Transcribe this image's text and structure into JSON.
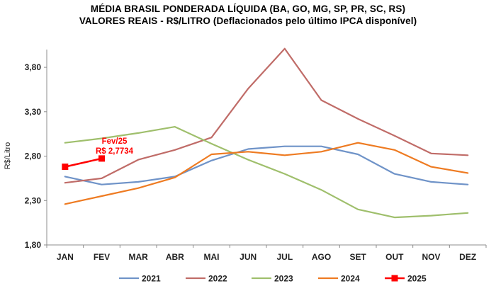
{
  "chart_data": {
    "type": "line",
    "title": "MÉDIA BRASIL PONDERADA LÍQUIDA (BA, GO, MG, SP, PR, SC, RS)",
    "subtitle": "VALORES REAIS - R$/LITRO (Deflacionados pelo último IPCA disponível)",
    "xlabel": "",
    "ylabel": "R$/Litro",
    "categories": [
      "JAN",
      "FEV",
      "MAR",
      "ABR",
      "MAI",
      "JUN",
      "JUL",
      "AGO",
      "SET",
      "OUT",
      "NOV",
      "DEZ"
    ],
    "ylim": [
      1.8,
      4.0
    ],
    "yticks": [
      "1,80",
      "2,30",
      "2,80",
      "3,30",
      "3,80"
    ],
    "ytick_values": [
      1.8,
      2.3,
      2.8,
      3.3,
      3.8
    ],
    "grid": false,
    "legend_position": "bottom",
    "series": [
      {
        "name": "2021",
        "color": "#6f93c8",
        "marker": false,
        "values": [
          2.57,
          2.48,
          2.51,
          2.57,
          2.75,
          2.88,
          2.91,
          2.91,
          2.82,
          2.6,
          2.51,
          2.48
        ]
      },
      {
        "name": "2022",
        "color": "#c06c68",
        "marker": false,
        "values": [
          2.5,
          2.55,
          2.76,
          2.87,
          3.01,
          3.56,
          4.01,
          3.43,
          3.22,
          3.03,
          2.83,
          2.81
        ]
      },
      {
        "name": "2023",
        "color": "#9fbf6c",
        "marker": false,
        "values": [
          2.95,
          3.0,
          3.06,
          3.13,
          2.94,
          2.76,
          2.6,
          2.42,
          2.2,
          2.11,
          2.13,
          2.16
        ]
      },
      {
        "name": "2024",
        "color": "#ee7b22",
        "marker": false,
        "values": [
          2.26,
          2.35,
          2.44,
          2.56,
          2.82,
          2.85,
          2.81,
          2.85,
          2.95,
          2.87,
          2.68,
          2.61
        ]
      },
      {
        "name": "2025",
        "color": "#ff0000",
        "marker": true,
        "values": [
          2.68,
          2.7734,
          null,
          null,
          null,
          null,
          null,
          null,
          null,
          null,
          null,
          null
        ]
      }
    ],
    "annotations": [
      {
        "text_line1": "Fev/25",
        "text_line2": "R$ 2,7734",
        "category": "FEV",
        "value": 2.7734
      }
    ]
  }
}
